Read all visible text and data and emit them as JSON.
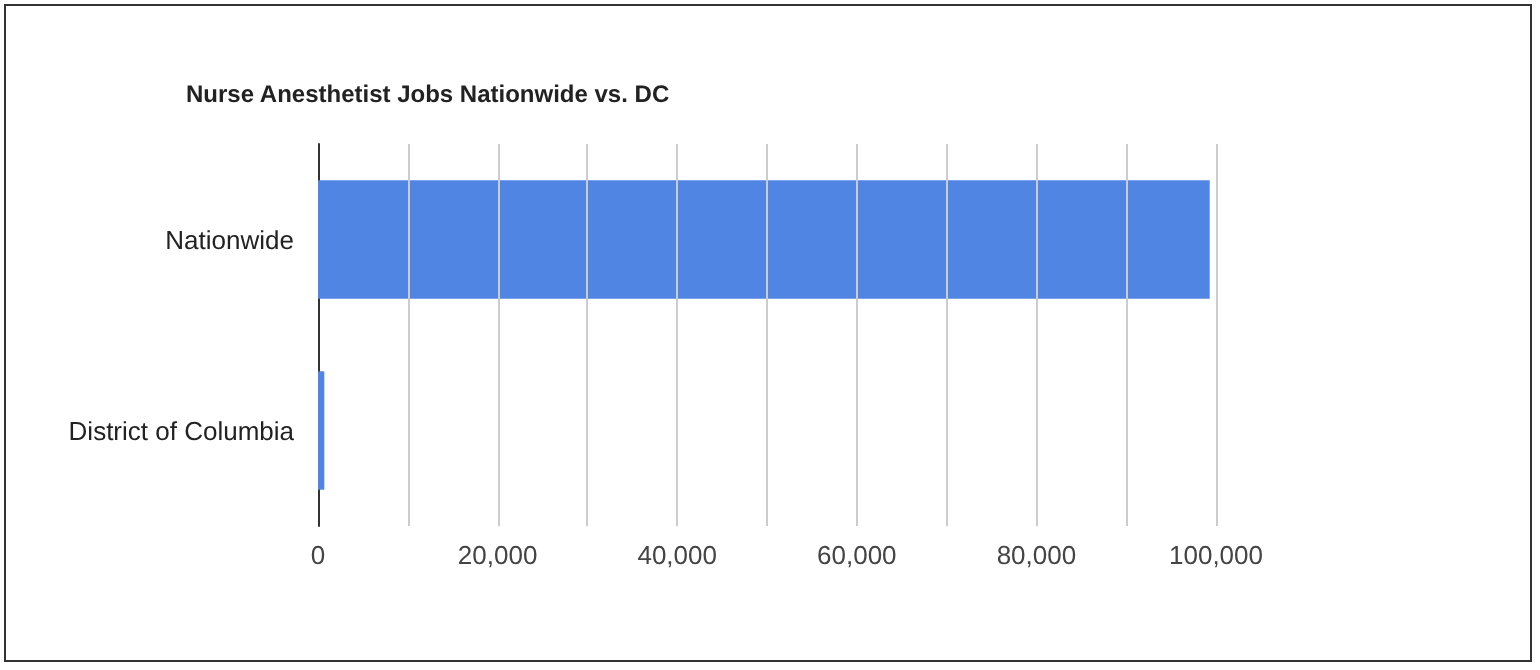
{
  "chart_data": {
    "type": "bar",
    "orientation": "horizontal",
    "title": "Nurse Anesthetist Jobs Nationwide vs. DC",
    "categories": [
      "Nationwide",
      "District of Columbia"
    ],
    "values": [
      99300,
      700
    ],
    "color": "#5185e3",
    "xlim": [
      0,
      100000
    ],
    "xticks": [
      0,
      {
        "value": 10000,
        "label": null
      },
      {
        "value": 20000,
        "label": "20,000"
      },
      {
        "value": 30000,
        "label": null
      },
      {
        "value": 40000,
        "label": "40,000"
      },
      {
        "value": 50000,
        "label": null
      },
      {
        "value": 60000,
        "label": "60,000"
      },
      {
        "value": 70000,
        "label": null
      },
      {
        "value": 80000,
        "label": "80,000"
      },
      {
        "value": 90000,
        "label": null
      },
      {
        "value": 100000,
        "label": "100,000"
      }
    ],
    "grid": true
  }
}
